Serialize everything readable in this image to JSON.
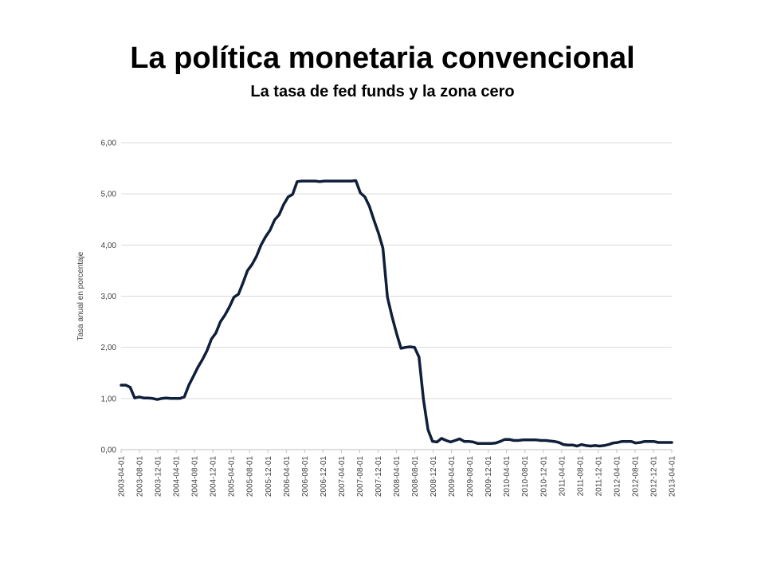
{
  "title": "La política monetaria convencional",
  "subtitle": "La tasa de fed funds y la zona cero",
  "chart_data": {
    "type": "line",
    "ylabel": "Tasa anual en porcentaje",
    "ylim": [
      0,
      6
    ],
    "yticks": [
      "0,00",
      "1,00",
      "2,00",
      "3,00",
      "4,00",
      "5,00",
      "6,00"
    ],
    "xticks": [
      "2003-04-01",
      "2003-08-01",
      "2003-12-01",
      "2004-04-01",
      "2004-08-01",
      "2004-12-01",
      "2005-04-01",
      "2005-08-01",
      "2005-12-01",
      "2006-04-01",
      "2006-08-01",
      "2006-12-01",
      "2007-04-01",
      "2007-08-01",
      "2007-12-01",
      "2008-04-01",
      "2008-08-01",
      "2008-12-01",
      "2009-04-01",
      "2009-08-01",
      "2009-12-01",
      "2010-04-01",
      "2010-08-01",
      "2010-12-01",
      "2011-04-01",
      "2011-08-01",
      "2011-12-01",
      "2012-04-01",
      "2012-08-01",
      "2012-12-01",
      "2013-04-01"
    ],
    "grid": true,
    "line_color": "#0f1f3a",
    "series": [
      {
        "values": [
          1.26,
          1.26,
          1.22,
          1.01,
          1.03,
          1.01,
          1.01,
          1.0,
          0.98,
          1.0,
          1.01,
          1.0,
          1.0,
          1.0,
          1.03,
          1.26,
          1.43,
          1.61,
          1.76,
          1.93,
          2.16,
          2.28,
          2.5,
          2.63,
          2.79,
          2.98,
          3.04,
          3.26,
          3.5,
          3.62,
          3.78,
          4.0,
          4.16,
          4.29,
          4.49,
          4.59,
          4.79,
          4.94,
          4.99,
          5.24,
          5.25,
          5.25,
          5.25,
          5.25,
          5.24,
          5.25,
          5.25,
          5.25,
          5.25,
          5.25,
          5.25,
          5.25,
          5.26,
          5.02,
          4.94,
          4.76,
          4.49,
          4.24,
          3.94,
          2.98,
          2.61,
          2.28,
          1.98,
          2.0,
          2.01,
          2.0,
          1.81,
          0.97,
          0.39,
          0.16,
          0.15,
          0.22,
          0.18,
          0.15,
          0.18,
          0.21,
          0.16,
          0.16,
          0.15,
          0.12,
          0.12,
          0.12,
          0.12,
          0.13,
          0.16,
          0.2,
          0.2,
          0.18,
          0.18,
          0.19,
          0.19,
          0.19,
          0.19,
          0.18,
          0.18,
          0.17,
          0.16,
          0.14,
          0.1,
          0.09,
          0.09,
          0.07,
          0.1,
          0.08,
          0.07,
          0.08,
          0.07,
          0.08,
          0.1,
          0.13,
          0.14,
          0.16,
          0.16,
          0.16,
          0.13,
          0.14,
          0.16,
          0.16,
          0.16,
          0.14,
          0.14,
          0.14,
          0.14
        ]
      }
    ]
  }
}
